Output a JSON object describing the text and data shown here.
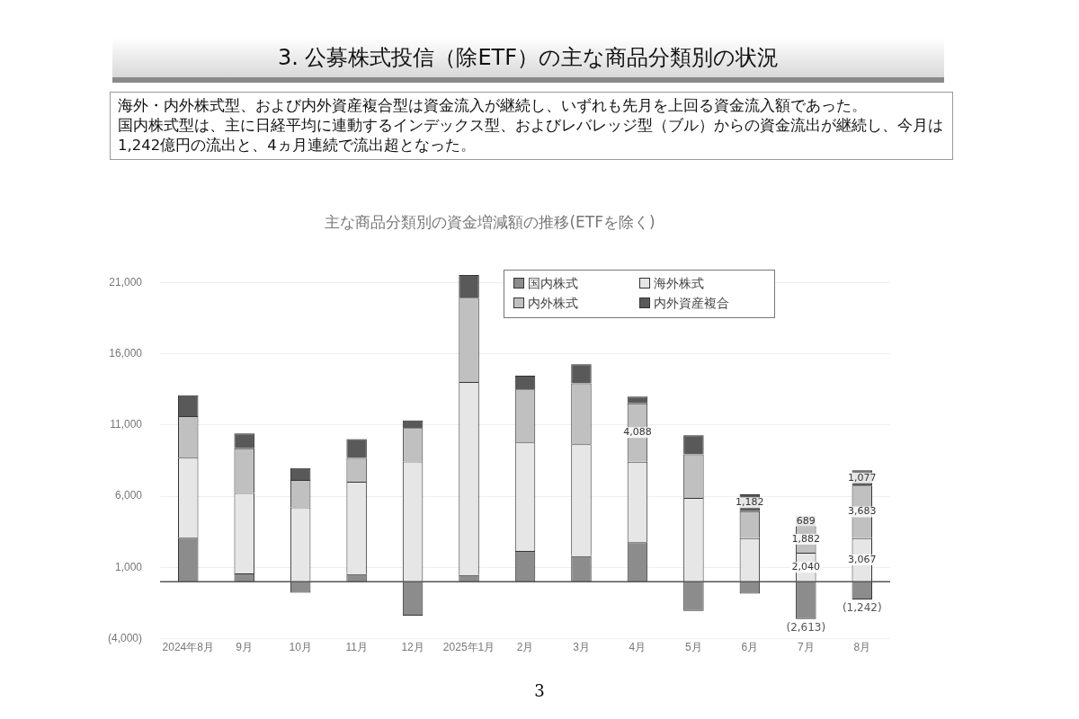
{
  "chart_data": {
    "type": "bar",
    "title": "主な商品分類別の資金増減額の推移(ETFを除く)",
    "annotations": [
      "3. 公募株式投信（除ETF）の主な商品分類別の状況",
      "海外・内外株式型、および内外資産複合型は資金流入が継続し、いずれも先月を上回る資金流入額であった。",
      "国内株式型は、主に日経平均に連動するインデックス型、およびレバレッジ型（ブル）からの資金流出が継続し、今月は1,242億円の流出と、4ヵ月連続で流出超となった。",
      "3"
    ],
    "categories": [
      "2024年8月",
      "9月",
      "10月",
      "11月",
      "12月",
      "2025年1月",
      "2月",
      "3月",
      "4月",
      "5月",
      "6月",
      "7月",
      "8月"
    ],
    "stacked": true,
    "series": [
      {
        "name": "国内株式",
        "color": "#8c8c8c",
        "values": [
          3100,
          590,
          -760,
          540,
          -2370,
          480,
          2170,
          1800,
          2780,
          -2040,
          -830,
          -2613,
          -1242
        ],
        "value_labels": [
          null,
          null,
          null,
          null,
          null,
          null,
          null,
          null,
          null,
          null,
          null,
          "(2,613)",
          "(1,242)"
        ]
      },
      {
        "name": "海外株式",
        "color": "#e6e6e6",
        "values": [
          5600,
          5650,
          5220,
          6480,
          8440,
          13540,
          7610,
          7850,
          5650,
          5890,
          3070,
          2040,
          3067
        ],
        "value_labels": [
          null,
          null,
          null,
          null,
          null,
          null,
          null,
          null,
          null,
          null,
          null,
          "2,040",
          "3,067"
        ]
      },
      {
        "name": "内外株式",
        "color": "#c0c0c0",
        "values": [
          2930,
          3130,
          1930,
          1670,
          2350,
          5910,
          3720,
          4280,
          4088,
          3050,
          1890,
          1882,
          3683
        ],
        "value_labels": [
          null,
          null,
          null,
          null,
          null,
          null,
          null,
          null,
          "4,088",
          null,
          null,
          "1,882",
          "3,683"
        ]
      },
      {
        "name": "内外資産複合",
        "color": "#595959",
        "values": [
          1460,
          1040,
          830,
          1330,
          540,
          1590,
          960,
          1330,
          480,
          1350,
          1182,
          689,
          1077
        ],
        "value_labels": [
          null,
          null,
          null,
          null,
          null,
          null,
          null,
          null,
          null,
          null,
          "1,182",
          "689",
          "1,077"
        ]
      }
    ],
    "ylim": [
      -4000,
      22000
    ],
    "yticks": [
      {
        "value": -4000,
        "label": "(4,000)"
      },
      {
        "value": 1000,
        "label": "1,000"
      },
      {
        "value": 6000,
        "label": "6,000"
      },
      {
        "value": 11000,
        "label": "11,000"
      },
      {
        "value": 16000,
        "label": "16,000"
      },
      {
        "value": 21000,
        "label": "21,000"
      }
    ],
    "ref_lines": [
      {
        "axis": "y",
        "value": 0,
        "color": "#555555"
      }
    ],
    "grid": "y",
    "legend": "top"
  }
}
